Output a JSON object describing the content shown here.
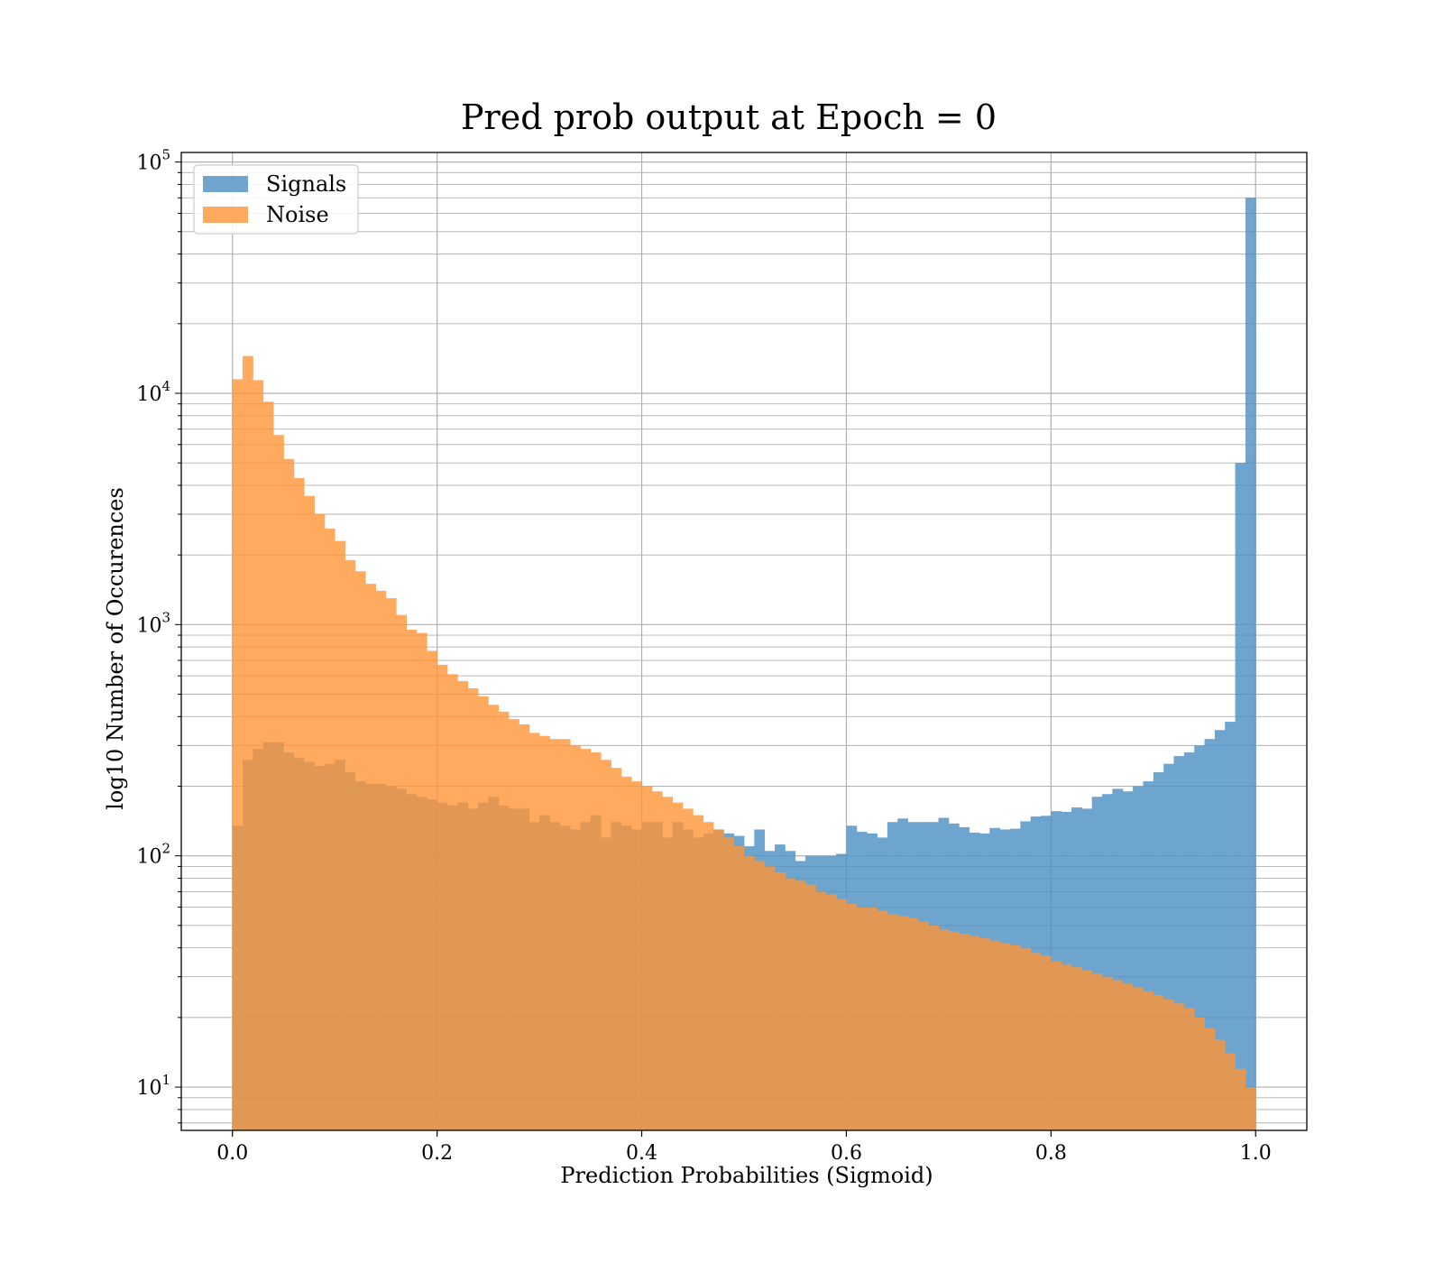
{
  "chart_data": {
    "type": "bar",
    "subtype": "overlaid-histogram",
    "title": "Pred prob output at Epoch = 0",
    "xlabel": "Prediction Probabilities (Sigmoid)",
    "ylabel": "log10 Number of Occurences",
    "xlim": [
      -0.05,
      1.05
    ],
    "ylim": [
      6.5,
      110000
    ],
    "yscale": "log",
    "grid": true,
    "legend_position": "upper-left",
    "x_ticks": [
      0.0,
      0.2,
      0.4,
      0.6,
      0.8,
      1.0
    ],
    "x_tick_labels": [
      "0.0",
      "0.2",
      "0.4",
      "0.6",
      "0.8",
      "1.0"
    ],
    "y_ticks": [
      10,
      100,
      1000,
      10000,
      100000
    ],
    "y_tick_labels": [
      {
        "base": "10",
        "exp": "1"
      },
      {
        "base": "10",
        "exp": "2"
      },
      {
        "base": "10",
        "exp": "3"
      },
      {
        "base": "10",
        "exp": "4"
      },
      {
        "base": "10",
        "exp": "5"
      }
    ],
    "bin_edges_range": [
      0.0,
      1.0
    ],
    "bins": 100,
    "series": [
      {
        "name": "Signals",
        "color": "#4b8fc3",
        "values": [
          135,
          260,
          290,
          310,
          310,
          280,
          265,
          255,
          245,
          250,
          260,
          230,
          210,
          205,
          205,
          200,
          195,
          185,
          180,
          175,
          170,
          165,
          170,
          160,
          170,
          180,
          165,
          160,
          160,
          140,
          150,
          140,
          135,
          130,
          140,
          150,
          120,
          140,
          135,
          130,
          140,
          140,
          120,
          140,
          130,
          120,
          125,
          130,
          125,
          122,
          110,
          130,
          105,
          112,
          105,
          95,
          100,
          100,
          100,
          102,
          135,
          127,
          125,
          120,
          140,
          145,
          140,
          140,
          140,
          146,
          138,
          133,
          126,
          125,
          132,
          130,
          131,
          141,
          148,
          149,
          156,
          155,
          162,
          160,
          180,
          185,
          195,
          190,
          200,
          210,
          230,
          250,
          270,
          280,
          300,
          320,
          350,
          380,
          5000,
          70000
        ]
      },
      {
        "name": "Noise",
        "color": "#ff9537",
        "values": [
          11500,
          14500,
          11400,
          9200,
          6600,
          5200,
          4300,
          3600,
          3000,
          2600,
          2300,
          1900,
          1700,
          1500,
          1400,
          1300,
          1100,
          950,
          920,
          770,
          670,
          610,
          570,
          530,
          490,
          450,
          420,
          390,
          370,
          340,
          330,
          320,
          320,
          300,
          290,
          280,
          260,
          240,
          220,
          210,
          200,
          190,
          180,
          170,
          160,
          150,
          140,
          130,
          120,
          110,
          100,
          95,
          90,
          85,
          80,
          78,
          75,
          70,
          68,
          65,
          62,
          60,
          60,
          58,
          56,
          55,
          54,
          52,
          50,
          48,
          47,
          46,
          45,
          44,
          43,
          42,
          41,
          40,
          38,
          37,
          35,
          34,
          33,
          32,
          31,
          30,
          29,
          28,
          27,
          26,
          25,
          24,
          23,
          22,
          20,
          18,
          16,
          14,
          12,
          10
        ]
      }
    ]
  }
}
